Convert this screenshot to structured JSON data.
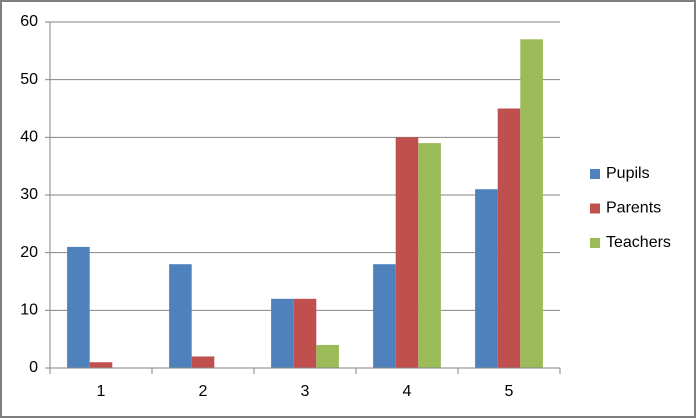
{
  "chart_data": {
    "type": "bar",
    "categories": [
      "1",
      "2",
      "3",
      "4",
      "5"
    ],
    "series": [
      {
        "name": "Pupils",
        "color": "#4f81bd",
        "values": [
          21,
          18,
          12,
          18,
          31
        ]
      },
      {
        "name": "Parents",
        "color": "#c0504d",
        "values": [
          1,
          2,
          12,
          40,
          45
        ]
      },
      {
        "name": "Teachers",
        "color": "#9bbb59",
        "values": [
          0,
          0,
          4,
          39,
          57
        ]
      }
    ],
    "ylim": [
      0,
      60
    ],
    "yticks": [
      0,
      10,
      20,
      30,
      40,
      50,
      60
    ],
    "grid": true,
    "legend": "right"
  }
}
